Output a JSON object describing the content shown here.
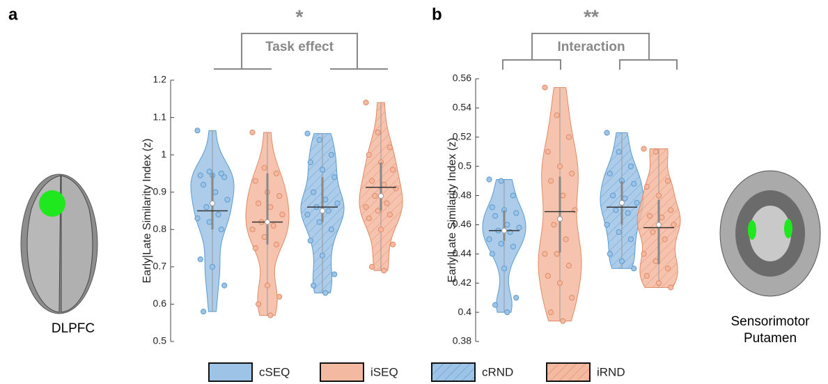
{
  "panel_labels": [
    "a",
    "b"
  ],
  "region_labels": [
    "DLPFC",
    "Sensorimotor\nPutamen"
  ],
  "chart_data": [
    {
      "type": "violin",
      "ylabel": "Early|Late Similarity Index (z)",
      "ylim": [
        0.5,
        1.2
      ],
      "yticks": [
        0.5,
        0.6,
        0.7,
        0.8,
        0.9,
        1,
        1.1,
        1.2
      ],
      "significance": "*",
      "annotation": "Task effect",
      "series": [
        {
          "name": "cSEQ",
          "color": "#9dc3e6",
          "hatch": false,
          "median": 0.85,
          "mean": 0.87,
          "q1": 0.8,
          "q3": 0.95,
          "points": [
            1.065,
            0.955,
            0.95,
            0.945,
            0.945,
            0.94,
            0.92,
            0.9,
            0.88,
            0.86,
            0.84,
            0.83,
            0.82,
            0.8,
            0.72,
            0.7,
            0.65,
            0.58
          ]
        },
        {
          "name": "iSEQ",
          "color": "#f4b9a1",
          "hatch": false,
          "median": 0.82,
          "mean": 0.82,
          "q1": 0.76,
          "q3": 0.95,
          "points": [
            1.06,
            0.965,
            0.95,
            0.93,
            0.9,
            0.89,
            0.87,
            0.86,
            0.84,
            0.82,
            0.81,
            0.8,
            0.78,
            0.76,
            0.75,
            0.65,
            0.62,
            0.6,
            0.57
          ]
        },
        {
          "name": "cRND",
          "color": "#9dc3e6",
          "hatch": true,
          "median": 0.86,
          "mean": 0.85,
          "q1": 0.82,
          "q3": 0.94,
          "points": [
            1.057,
            1.04,
            1.0,
            0.98,
            0.96,
            0.94,
            0.9,
            0.88,
            0.87,
            0.86,
            0.85,
            0.84,
            0.82,
            0.8,
            0.77,
            0.73,
            0.68,
            0.65,
            0.63
          ]
        },
        {
          "name": "iRND",
          "color": "#f4b9a1",
          "hatch": true,
          "median": 0.913,
          "mean": 0.89,
          "q1": 0.85,
          "q3": 0.98,
          "points": [
            1.14,
            1.06,
            1.02,
            1.0,
            0.98,
            0.96,
            0.93,
            0.92,
            0.91,
            0.89,
            0.87,
            0.86,
            0.85,
            0.84,
            0.83,
            0.8,
            0.76,
            0.7,
            0.69
          ]
        }
      ]
    },
    {
      "type": "violin",
      "ylabel": "Early|Late Similarity Index (z)",
      "ylim": [
        0.38,
        0.56
      ],
      "yticks": [
        0.38,
        0.4,
        0.42,
        0.44,
        0.46,
        0.48,
        0.5,
        0.52,
        0.54,
        0.56
      ],
      "significance": "**",
      "annotation": "Interaction",
      "series": [
        {
          "name": "cSEQ",
          "color": "#9dc3e6",
          "hatch": false,
          "median": 0.456,
          "mean": 0.456,
          "q1": 0.449,
          "q3": 0.47,
          "points": [
            0.491,
            0.49,
            0.48,
            0.472,
            0.47,
            0.468,
            0.466,
            0.46,
            0.458,
            0.456,
            0.455,
            0.45,
            0.447,
            0.445,
            0.44,
            0.43,
            0.41,
            0.405,
            0.4
          ]
        },
        {
          "name": "iSEQ",
          "color": "#f4b9a1",
          "hatch": false,
          "median": 0.469,
          "mean": 0.464,
          "q1": 0.441,
          "q3": 0.493,
          "points": [
            0.554,
            0.535,
            0.52,
            0.51,
            0.5,
            0.495,
            0.49,
            0.48,
            0.47,
            0.46,
            0.45,
            0.44,
            0.44,
            0.432,
            0.425,
            0.42,
            0.41,
            0.4,
            0.394
          ]
        },
        {
          "name": "cRND",
          "color": "#9dc3e6",
          "hatch": true,
          "median": 0.472,
          "mean": 0.475,
          "q1": 0.46,
          "q3": 0.49,
          "points": [
            0.523,
            0.51,
            0.5,
            0.495,
            0.49,
            0.488,
            0.48,
            0.478,
            0.475,
            0.47,
            0.468,
            0.46,
            0.455,
            0.45,
            0.44,
            0.435,
            0.43
          ]
        },
        {
          "name": "iRND",
          "color": "#f4b9a1",
          "hatch": true,
          "median": 0.458,
          "mean": 0.46,
          "q1": 0.433,
          "q3": 0.477,
          "points": [
            0.512,
            0.51,
            0.49,
            0.486,
            0.48,
            0.47,
            0.466,
            0.465,
            0.46,
            0.455,
            0.45,
            0.44,
            0.435,
            0.43,
            0.425,
            0.42,
            0.417
          ]
        }
      ]
    }
  ]
}
